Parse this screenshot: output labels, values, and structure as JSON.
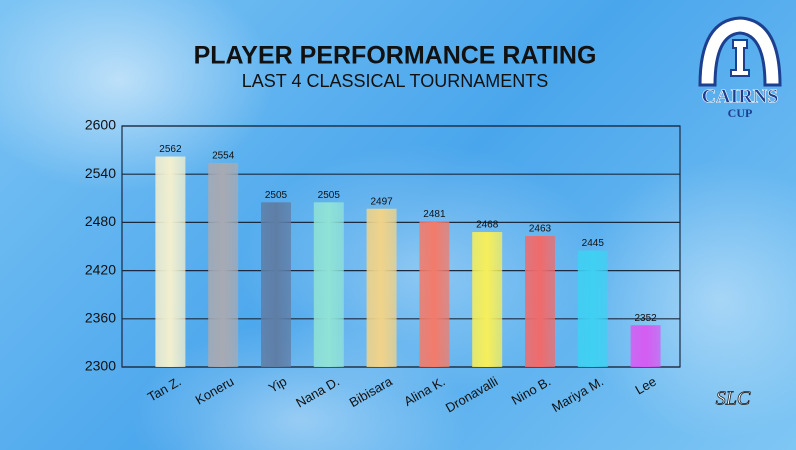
{
  "chart_data": {
    "type": "bar",
    "title": "PLAYER PERFORMANCE RATING",
    "subtitle": "LAST 4 CLASSICAL TOURNAMENTS",
    "categories": [
      "Tan Z.",
      "Koneru",
      "Yip",
      "Nana D.",
      "Bibisara",
      "Alina K.",
      "Dronavalli",
      "Nino B.",
      "Mariya M.",
      "Lee"
    ],
    "values": [
      2562,
      2554,
      2505,
      2505,
      2497,
      2481,
      2468,
      2463,
      2445,
      2352
    ],
    "colors": [
      "#f2efcf",
      "#a7aab3",
      "#5f7ea6",
      "#8fe2d6",
      "#f0d389",
      "#f27b6b",
      "#f6ef5c",
      "#f06b6b",
      "#3fd0f2",
      "#d55cf2"
    ],
    "ylim": [
      2300,
      2600
    ],
    "yticks": [
      2300,
      2360,
      2420,
      2480,
      2540,
      2600
    ],
    "grid": true
  },
  "logo": {
    "name": "CAIRNS",
    "sub": "CUP",
    "monogram": "SLC"
  }
}
